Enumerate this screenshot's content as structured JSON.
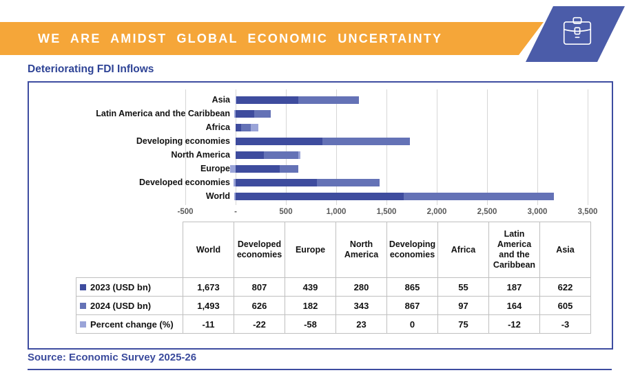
{
  "header": {
    "title": "WE ARE AMIDST GLOBAL ECONOMIC UNCERTAINTY",
    "banner_color": "#F5A639",
    "badge_color": "#4B5CA9",
    "badge_icon": "briefcase-icon",
    "text_color": "#FFFFFF"
  },
  "section": {
    "title": "Deteriorating FDI Inflows",
    "title_color": "#2F4496",
    "panel_border_color": "#3D4CA0"
  },
  "chart_data": {
    "type": "bar",
    "orientation": "horizontal",
    "stacked": true,
    "grid": "vertical",
    "categories": [
      "Asia",
      "Latin America and the Caribbean",
      "Africa",
      "Developing economies",
      "North America",
      "Europe",
      "Developed economies",
      "World"
    ],
    "series": [
      {
        "name": "2023 (USD bn)",
        "color": "#3E4C9E",
        "values": [
          622,
          187,
          55,
          865,
          280,
          439,
          807,
          1673
        ]
      },
      {
        "name": "2024 (USD bn)",
        "color": "#6472B6",
        "values": [
          605,
          164,
          97,
          867,
          343,
          182,
          626,
          1493
        ]
      },
      {
        "name": "Percent change (%)",
        "color": "#9AA4D8",
        "values": [
          -3,
          -12,
          75,
          0,
          23,
          -58,
          -22,
          -11
        ]
      }
    ],
    "xlim": [
      -500,
      3500
    ],
    "x_ticks": [
      {
        "value": -500,
        "label": "-500"
      },
      {
        "value": 0,
        "label": "-"
      },
      {
        "value": 500,
        "label": "500"
      },
      {
        "value": 1000,
        "label": "1,000"
      },
      {
        "value": 1500,
        "label": "1,500"
      },
      {
        "value": 2000,
        "label": "2,000"
      },
      {
        "value": 2500,
        "label": "2,500"
      },
      {
        "value": 3000,
        "label": "3,000"
      },
      {
        "value": 3500,
        "label": "3,500"
      }
    ],
    "gridline_color": "#D6D6D6",
    "legend_position": "table-rows"
  },
  "table": {
    "columns": [
      "World",
      "Developed economies",
      "Europe",
      "North America",
      "Developing economies",
      "Africa",
      "Latin America and the Caribbean",
      "Asia"
    ],
    "border_color": "#BFBFBF",
    "rows": [
      {
        "label": "2023 (USD bn)",
        "marker_color": "#3E4C9E",
        "values": [
          "1,673",
          "807",
          "439",
          "280",
          "865",
          "55",
          "187",
          "622"
        ]
      },
      {
        "label": "2024 (USD bn)",
        "marker_color": "#6472B6",
        "values": [
          "1,493",
          "626",
          "182",
          "343",
          "867",
          "97",
          "164",
          "605"
        ]
      },
      {
        "label": "Percent change (%)",
        "marker_color": "#9AA4D8",
        "values": [
          "-11",
          "-22",
          "-58",
          "23",
          "0",
          "75",
          "-12",
          "-3"
        ]
      }
    ]
  },
  "source": {
    "text": "Source: Economic Survey 2025-26",
    "color": "#3A4A9C"
  }
}
